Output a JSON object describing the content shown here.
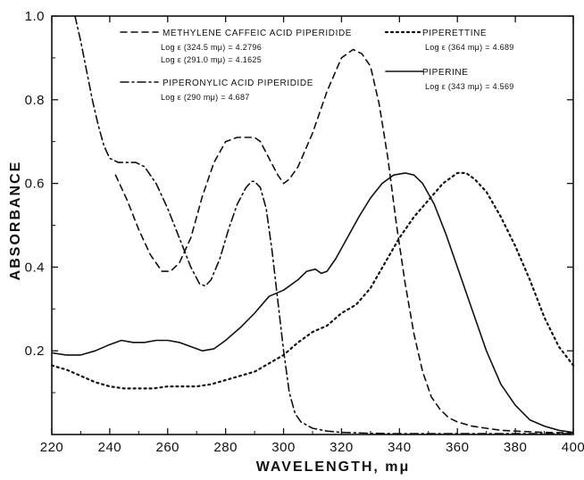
{
  "chart_data": {
    "type": "line",
    "title": "",
    "xlabel": "WAVELENGTH, mμ",
    "ylabel": "ABSORBANCE",
    "xlim": [
      220,
      400
    ],
    "ylim": [
      0,
      1.0
    ],
    "x_ticks": [
      220,
      240,
      260,
      280,
      300,
      320,
      340,
      360,
      380,
      400
    ],
    "x_tick_labels": [
      "220",
      "240",
      "260",
      "280",
      "300",
      "320",
      "340",
      "360",
      "380",
      "400"
    ],
    "y_ticks": [
      0.2,
      0.4,
      0.6,
      0.8,
      1.0
    ],
    "y_tick_labels": [
      "0.2",
      "0.4",
      "0.6",
      "0.8",
      "1.0"
    ],
    "grid": false,
    "series": [
      {
        "name": "METHYLENE CAFFEIC ACID PIPERIDIDE",
        "notes": [
          "Log ε (324.5 mμ) = 4.2796",
          "Log ε (291.0 mμ) = 4.1625"
        ],
        "dash": "dashed",
        "x": [
          242,
          246,
          250,
          254,
          258,
          261,
          264,
          268,
          272,
          276,
          280,
          284,
          287,
          290,
          292,
          295,
          298,
          300,
          302,
          305,
          310,
          315,
          320,
          324,
          327,
          330,
          333,
          336,
          339,
          342,
          345,
          348,
          351,
          354,
          357,
          360,
          365,
          370,
          375,
          380,
          390,
          400
        ],
        "y": [
          0.62,
          0.56,
          0.49,
          0.43,
          0.39,
          0.39,
          0.41,
          0.47,
          0.57,
          0.65,
          0.7,
          0.71,
          0.71,
          0.71,
          0.7,
          0.66,
          0.62,
          0.6,
          0.61,
          0.64,
          0.72,
          0.82,
          0.9,
          0.92,
          0.91,
          0.88,
          0.79,
          0.66,
          0.5,
          0.36,
          0.24,
          0.15,
          0.09,
          0.06,
          0.04,
          0.03,
          0.02,
          0.015,
          0.01,
          0.008,
          0.005,
          0.004
        ]
      },
      {
        "name": "PIPERONYLIC ACID PIPERIDIDE",
        "notes": [
          "Log ε (290 mμ) = 4.687"
        ],
        "dash": "dashdot",
        "x": [
          228,
          230,
          232,
          234,
          236,
          238,
          240,
          243,
          246,
          249,
          252,
          256,
          260,
          264,
          268,
          271,
          273,
          275,
          278,
          281,
          284,
          287,
          289,
          290,
          292,
          294,
          296,
          298,
          300,
          302,
          304,
          306,
          310,
          315,
          320,
          330,
          340,
          360,
          380,
          400
        ],
        "y": [
          1.0,
          0.94,
          0.87,
          0.8,
          0.74,
          0.69,
          0.66,
          0.65,
          0.65,
          0.65,
          0.64,
          0.6,
          0.54,
          0.47,
          0.4,
          0.36,
          0.355,
          0.37,
          0.42,
          0.49,
          0.55,
          0.59,
          0.605,
          0.605,
          0.59,
          0.54,
          0.44,
          0.32,
          0.2,
          0.1,
          0.05,
          0.03,
          0.015,
          0.008,
          0.005,
          0.003,
          0.002,
          0.002,
          0.002,
          0.002
        ]
      },
      {
        "name": "PIPERETTINE",
        "notes": [
          "Log ε (364 mμ) = 4.689"
        ],
        "dash": "dotted",
        "x": [
          220,
          225,
          230,
          235,
          240,
          245,
          250,
          255,
          260,
          265,
          270,
          275,
          280,
          285,
          290,
          295,
          300,
          305,
          310,
          315,
          320,
          325,
          330,
          335,
          340,
          345,
          350,
          355,
          360,
          363,
          366,
          370,
          375,
          380,
          385,
          390,
          395,
          400
        ],
        "y": [
          0.165,
          0.155,
          0.14,
          0.125,
          0.115,
          0.11,
          0.11,
          0.11,
          0.115,
          0.115,
          0.115,
          0.12,
          0.13,
          0.14,
          0.15,
          0.17,
          0.19,
          0.22,
          0.245,
          0.26,
          0.29,
          0.31,
          0.35,
          0.41,
          0.47,
          0.52,
          0.56,
          0.6,
          0.625,
          0.625,
          0.61,
          0.58,
          0.52,
          0.45,
          0.37,
          0.28,
          0.21,
          0.165
        ]
      },
      {
        "name": "PIPERINE",
        "notes": [
          "Log ε (343 mμ) = 4.569"
        ],
        "dash": "solid",
        "x": [
          220,
          225,
          230,
          235,
          240,
          244,
          248,
          252,
          256,
          260,
          264,
          268,
          272,
          276,
          280,
          285,
          290,
          295,
          300,
          305,
          308,
          311,
          313,
          315,
          318,
          322,
          326,
          330,
          334,
          338,
          342,
          345,
          348,
          352,
          356,
          360,
          365,
          370,
          375,
          380,
          385,
          390,
          395,
          400
        ],
        "y": [
          0.195,
          0.19,
          0.19,
          0.2,
          0.215,
          0.225,
          0.22,
          0.22,
          0.225,
          0.225,
          0.22,
          0.21,
          0.2,
          0.205,
          0.225,
          0.255,
          0.29,
          0.33,
          0.345,
          0.37,
          0.39,
          0.395,
          0.385,
          0.39,
          0.42,
          0.47,
          0.52,
          0.565,
          0.6,
          0.62,
          0.625,
          0.62,
          0.6,
          0.55,
          0.48,
          0.4,
          0.3,
          0.2,
          0.12,
          0.07,
          0.035,
          0.02,
          0.01,
          0.005
        ]
      }
    ]
  }
}
